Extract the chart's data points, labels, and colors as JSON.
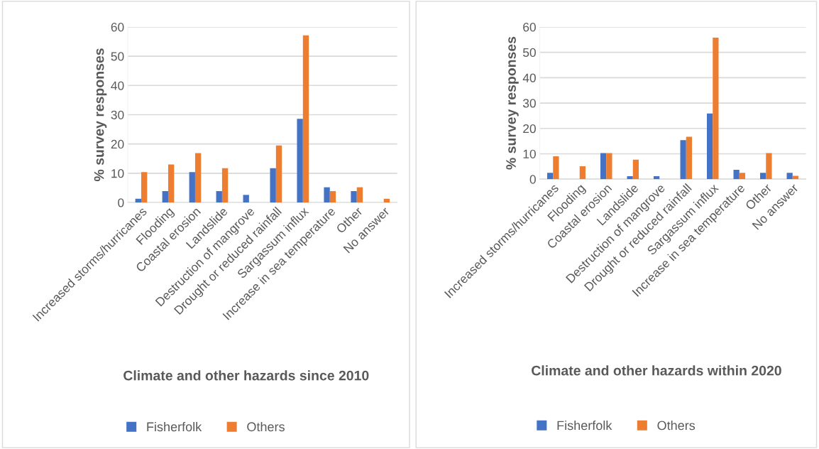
{
  "chart_data": [
    {
      "type": "bar",
      "xlabel": "Climate and other hazards since 2010",
      "ylabel": "% survey responses",
      "categories": [
        "Increased storms/hurricanes",
        "Flooding",
        "Coastal erosion",
        "Landslide",
        "Destruction of mangrove",
        "Drought or reduced rainfall",
        "Sargassum influx",
        "Increase in sea temperature",
        "Other",
        "No answer"
      ],
      "series": [
        {
          "name": "Fisherfolk",
          "color": "#4472c4",
          "values": [
            1.3,
            3.9,
            10.4,
            3.9,
            2.6,
            11.7,
            28.6,
            5.2,
            3.9,
            0
          ]
        },
        {
          "name": "Others",
          "color": "#ed7d31",
          "values": [
            10.4,
            13,
            16.9,
            11.7,
            0,
            19.5,
            57.1,
            3.9,
            5.2,
            1.3
          ]
        }
      ],
      "ylim": [
        0,
        60
      ],
      "yticks": [
        0,
        10,
        20,
        30,
        40,
        50,
        60
      ],
      "grid": "y",
      "legend": "bottom"
    },
    {
      "type": "bar",
      "xlabel": "Climate and other hazards within 2020",
      "ylabel": "% survey responses",
      "categories": [
        "Increased storms/hurricanes",
        "Flooding",
        "Coastal erosion",
        "Landslide",
        "Destruction of mangrove",
        "Drought or reduced rainfall",
        "Sargassum influx",
        "Increase in sea temperature",
        "Other",
        "No answer"
      ],
      "series": [
        {
          "name": "Fisherfolk",
          "color": "#4472c4",
          "values": [
            2.5,
            0,
            10.3,
            1.2,
            1.2,
            15.4,
            25.9,
            3.7,
            2.5,
            2.5
          ]
        },
        {
          "name": "Others",
          "color": "#ed7d31",
          "values": [
            9,
            5.1,
            10.3,
            7.7,
            0,
            16.7,
            55.8,
            2.5,
            10.3,
            1.3
          ]
        }
      ],
      "ylim": [
        0,
        60
      ],
      "yticks": [
        0,
        10,
        20,
        30,
        40,
        50,
        60
      ],
      "grid": "y",
      "legend": "bottom"
    }
  ]
}
